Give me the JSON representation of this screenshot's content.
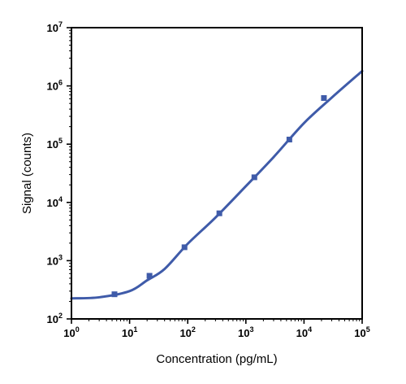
{
  "chart_data": {
    "type": "scatter",
    "title": "",
    "xlabel": "Concentration (pg/mL)",
    "ylabel": "Signal (counts)",
    "x_scale": "log",
    "y_scale": "log",
    "xlim": [
      1,
      100000
    ],
    "ylim": [
      100,
      10000000
    ],
    "grid": false,
    "legend": "none",
    "x_ticks": [
      {
        "base": "10",
        "exp": "0"
      },
      {
        "base": "10",
        "exp": "1"
      },
      {
        "base": "10",
        "exp": "2"
      },
      {
        "base": "10",
        "exp": "3"
      },
      {
        "base": "10",
        "exp": "4"
      },
      {
        "base": "10",
        "exp": "5"
      }
    ],
    "y_ticks": [
      {
        "base": "10",
        "exp": "2"
      },
      {
        "base": "10",
        "exp": "3"
      },
      {
        "base": "10",
        "exp": "4"
      },
      {
        "base": "10",
        "exp": "5"
      },
      {
        "base": "10",
        "exp": "6"
      },
      {
        "base": "10",
        "exp": "7"
      }
    ],
    "series": [
      {
        "color": "#3f5ba9",
        "points": [
          {
            "x": 5.5,
            "y": 265
          },
          {
            "x": 22,
            "y": 550
          },
          {
            "x": 88,
            "y": 1700
          },
          {
            "x": 350,
            "y": 6500
          },
          {
            "x": 1400,
            "y": 27000
          },
          {
            "x": 5600,
            "y": 120000
          },
          {
            "x": 22000,
            "y": 620000
          }
        ],
        "fit_curve": [
          {
            "x": 1,
            "y": 225
          },
          {
            "x": 3,
            "y": 235
          },
          {
            "x": 10,
            "y": 300
          },
          {
            "x": 20,
            "y": 460
          },
          {
            "x": 40,
            "y": 720
          },
          {
            "x": 100,
            "y": 1950
          },
          {
            "x": 300,
            "y": 5500
          },
          {
            "x": 1000,
            "y": 19000
          },
          {
            "x": 3000,
            "y": 60000
          },
          {
            "x": 10000,
            "y": 230000
          },
          {
            "x": 30000,
            "y": 630000
          },
          {
            "x": 100000,
            "y": 1800000
          }
        ]
      }
    ]
  }
}
